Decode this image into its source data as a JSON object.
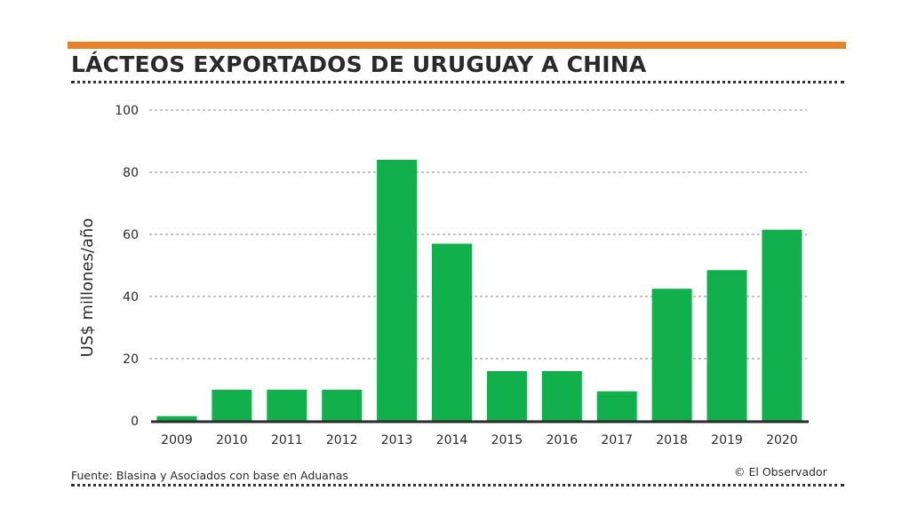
{
  "colors": {
    "accent": "#e8822a",
    "bar": "#12b04c",
    "text": "#2a2a2a",
    "grid": "#8a8a8a"
  },
  "chart_data": {
    "type": "bar",
    "title": "LÁCTEOS EXPORTADOS DE URUGUAY A CHINA",
    "ylabel": "US$ millones/año",
    "xlabel": "",
    "categories": [
      "2009",
      "2010",
      "2011",
      "2012",
      "2013",
      "2014",
      "2015",
      "2016",
      "2017",
      "2018",
      "2019",
      "2020"
    ],
    "values": [
      1.5,
      10,
      10,
      10,
      84,
      57,
      16,
      16,
      9.5,
      42.5,
      48.5,
      61.5
    ],
    "ylim": [
      0,
      100
    ],
    "yticks": [
      0,
      20,
      40,
      60,
      80,
      100
    ],
    "grid": true
  },
  "footer": {
    "source": "Fuente: Blasina y Asociados con base en Aduanas",
    "credit": "© El Observador"
  }
}
